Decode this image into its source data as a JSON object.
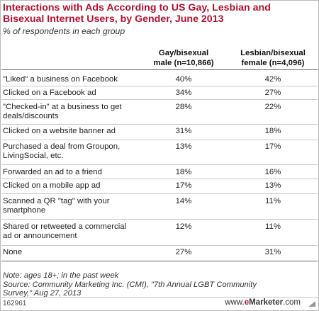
{
  "chart_data": {
    "type": "table",
    "title": "Interactions with Ads According to US Gay, Lesbian and Bisexual Internet Users, by Gender, June 2013",
    "subtitle": "% of respondents in each group",
    "columns": [
      "Gay/bisexual male (n=10,866)",
      "Lesbian/bisexual female (n=4,096)"
    ],
    "rows": [
      {
        "label": "\"Liked\" a business on Facebook",
        "values": [
          "40%",
          "42%"
        ]
      },
      {
        "label": "Clicked on a Facebook ad",
        "values": [
          "34%",
          "27%"
        ]
      },
      {
        "label": "\"Checked-in\" at a business to get deals/discounts",
        "values": [
          "28%",
          "22%"
        ]
      },
      {
        "label": "Clicked on a website banner ad",
        "values": [
          "31%",
          "18%"
        ]
      },
      {
        "label": "Purchased a deal from Groupon, LivingSocial, etc.",
        "values": [
          "13%",
          "17%"
        ]
      },
      {
        "label": "Forwarded an ad to a friend",
        "values": [
          "18%",
          "16%"
        ]
      },
      {
        "label": "Clicked on a mobile app ad",
        "values": [
          "17%",
          "13%"
        ]
      },
      {
        "label": "Scanned a QR \"tag\" with your smartphone",
        "values": [
          "14%",
          "11%"
        ]
      },
      {
        "label": "Shared or retweeted a commercial ad or announcement",
        "values": [
          "12%",
          "11%"
        ]
      },
      {
        "label": "None",
        "values": [
          "27%",
          "31%"
        ]
      }
    ]
  },
  "header": {
    "col1_line1": "Gay/bisexual",
    "col1_line2": "male (n=10,866)",
    "col2_line1": "Lesbian/bisexual",
    "col2_line2": "female (n=4,096)"
  },
  "labels": [
    [
      "\"Liked\" a business on Facebook"
    ],
    [
      "Clicked on a Facebook ad"
    ],
    [
      "\"Checked-in\" at a business to get",
      "deals/discounts"
    ],
    [
      "Clicked on a website banner ad"
    ],
    [
      "Purchased a deal from Groupon,",
      "LivingSocial, etc."
    ],
    [
      "Forwarded an ad to a friend"
    ],
    [
      "Clicked on a mobile app ad"
    ],
    [
      "Scanned a QR \"tag\" with your",
      "smartphone"
    ],
    [
      "Shared or retweeted a commercial",
      "ad or announcement"
    ],
    [
      "None"
    ]
  ],
  "note": {
    "line1": "Note: ages 18+; in the past week",
    "line2": "Source: Community Marketing Inc. (CMI), \"7th Annual LGBT Community",
    "line3": "Survey,\" Aug 27, 2013"
  },
  "footer": {
    "chart_id": "162961",
    "brand_prefix": "www.",
    "brand_e": "e",
    "brand_name": "Marketer",
    "brand_suffix": ".com"
  },
  "colors": {
    "title": "#b5102f",
    "rule": "#c9c9c9"
  }
}
